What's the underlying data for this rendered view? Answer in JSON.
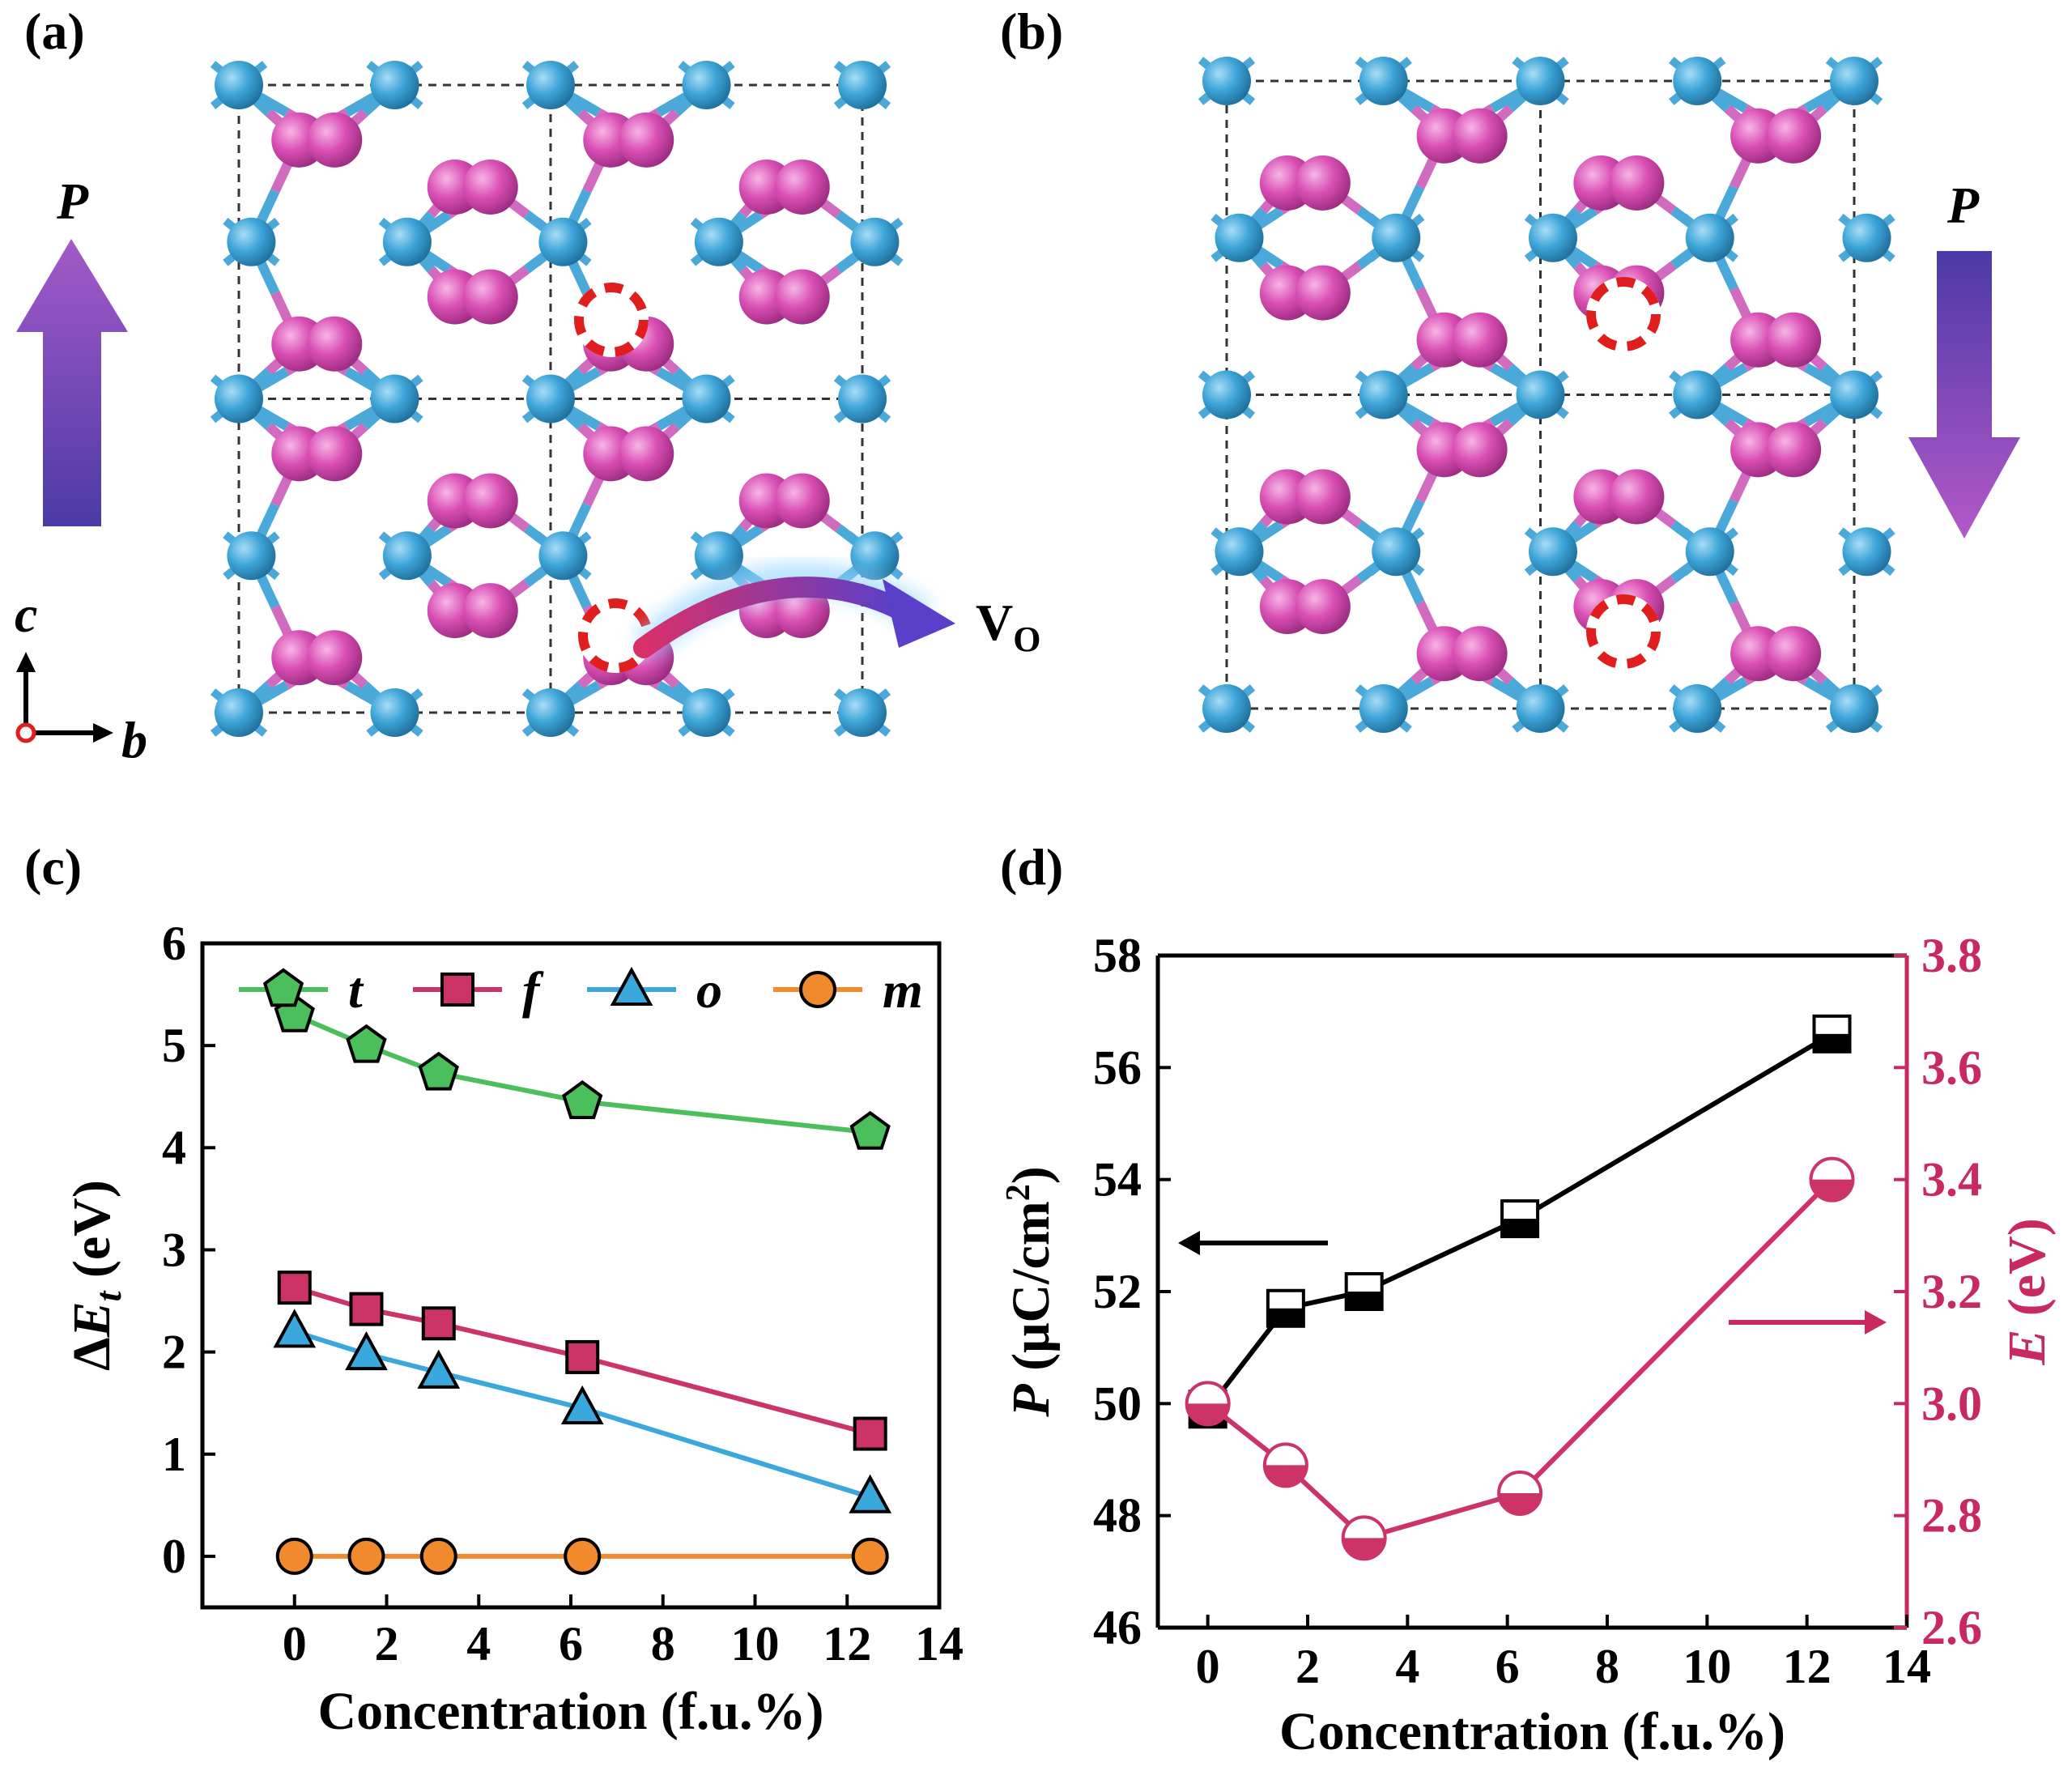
{
  "panels": {
    "a": "(a)",
    "b": "(b)",
    "c": "(c)",
    "d": "(d)"
  },
  "structure": {
    "polarization_symbol": "P",
    "vacancy_label": "V",
    "vacancy_subscript": "O",
    "axis_c": "c",
    "axis_b": "b",
    "colors": {
      "metal_atom": "#3da5d9",
      "oxygen_atom": "#d94fb4",
      "vacancy_ring": "#e01e1e",
      "arrow_purple": "#7b3fa8"
    }
  },
  "chart_data": [
    {
      "type": "line",
      "panel": "c",
      "xlabel": "Concentration (f.u.%)",
      "ylabel_prefix": "Δ",
      "ylabel_var": "E",
      "ylabel_sub": "t",
      "ylabel_unit": " (eV)",
      "xlim": [
        -2,
        14
      ],
      "ylim": [
        -0.5,
        6
      ],
      "xticks": [
        "0",
        "2",
        "4",
        "6",
        "8",
        "10",
        "12",
        "14"
      ],
      "yticks": [
        "0",
        "1",
        "2",
        "3",
        "4",
        "5",
        "6"
      ],
      "x": [
        0,
        1.56,
        3.13,
        6.25,
        12.5
      ],
      "legend_position": "top",
      "series": [
        {
          "name": "t",
          "marker": "pentagon",
          "color": "#4bbf5c",
          "values": [
            5.3,
            5.0,
            4.73,
            4.45,
            4.15
          ]
        },
        {
          "name": "f",
          "marker": "square",
          "color": "#cc3366",
          "values": [
            2.63,
            2.42,
            2.28,
            1.95,
            1.2
          ]
        },
        {
          "name": "o",
          "marker": "triangle",
          "color": "#3aa8dc",
          "values": [
            2.2,
            1.98,
            1.8,
            1.45,
            0.58
          ]
        },
        {
          "name": "m",
          "marker": "circle",
          "color": "#f08a2c",
          "values": [
            0,
            0,
            0,
            0,
            0
          ]
        }
      ]
    },
    {
      "type": "line",
      "panel": "d",
      "xlabel": "Concentration (f.u.%)",
      "ylabel_left_var": "P",
      "ylabel_left_unit": " (μC/cm",
      "ylabel_left_sup": "2",
      "ylabel_left_close": ")",
      "ylabel_right_var": "E",
      "ylabel_right_unit": " (eV)",
      "xlim": [
        -1,
        14
      ],
      "ylim_left": [
        46,
        58
      ],
      "ylim_right": [
        2.6,
        3.8
      ],
      "xticks": [
        "0",
        "2",
        "4",
        "6",
        "8",
        "10",
        "12",
        "14"
      ],
      "yticks_left": [
        "46",
        "48",
        "50",
        "52",
        "54",
        "56",
        "58"
      ],
      "yticks_right": [
        "2.6",
        "2.8",
        "3.0",
        "3.2",
        "3.4",
        "3.6",
        "3.8"
      ],
      "x": [
        0,
        1.56,
        3.13,
        6.25,
        12.5
      ],
      "series": [
        {
          "axis": "left",
          "marker": "half-square",
          "color": "#000000",
          "values": [
            49.9,
            51.7,
            52.0,
            53.3,
            56.6
          ]
        },
        {
          "axis": "right",
          "marker": "half-circle",
          "color": "#cc3366",
          "values": [
            3.0,
            2.89,
            2.76,
            2.84,
            3.4
          ]
        }
      ]
    }
  ]
}
